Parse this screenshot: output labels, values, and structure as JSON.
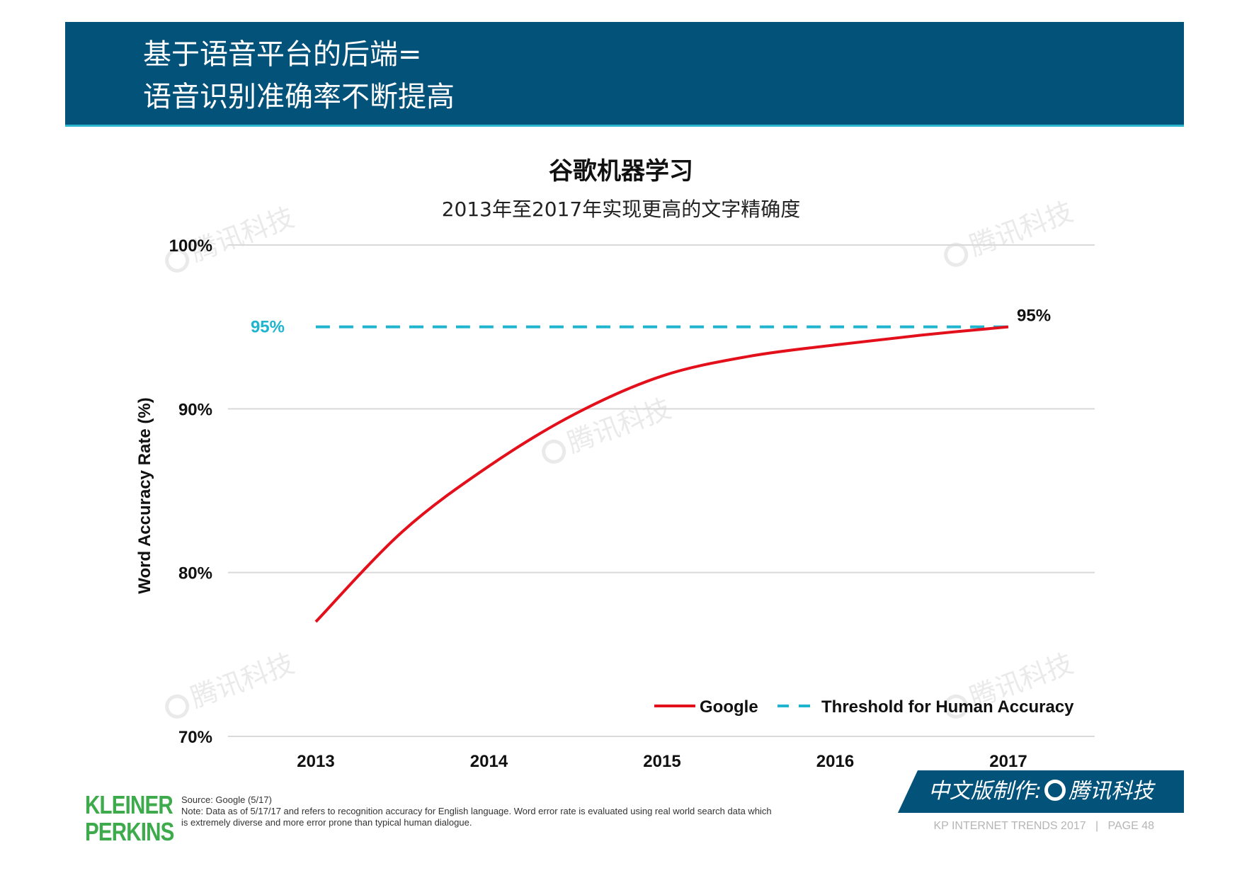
{
  "header": {
    "line1": "基于语音平台的后端=",
    "line2": "语音识别准确率不断提高"
  },
  "chart_data": {
    "type": "line",
    "title": "谷歌机器学习",
    "subtitle": "2013年至2017年实现更高的文字精确度",
    "ylabel": "Word Accuracy Rate (%)",
    "xlabel": "",
    "x": [
      2013,
      2014,
      2015,
      2016,
      2017
    ],
    "x_tick_labels": [
      "2013",
      "2014",
      "2015",
      "2016",
      "2017"
    ],
    "ylim": [
      70,
      100
    ],
    "y_ticks": [
      70,
      80,
      90,
      100
    ],
    "y_tick_labels": [
      "70%",
      "80%",
      "90%",
      "100%"
    ],
    "grid": true,
    "legend_position": "bottom-right",
    "series": [
      {
        "name": "Google",
        "color": "#e3101c",
        "style": "solid",
        "x": [
          2013,
          2013.5,
          2014,
          2014.5,
          2015,
          2015.5,
          2016,
          2016.5,
          2017
        ],
        "values": [
          77,
          82.5,
          86.5,
          89.7,
          92,
          93.2,
          93.9,
          94.5,
          95
        ]
      },
      {
        "name": "Threshold for Human Accuracy",
        "color": "#1fb5cf",
        "style": "dashed",
        "x": [
          2013,
          2017
        ],
        "values": [
          95,
          95
        ]
      }
    ],
    "annotations": [
      {
        "text": "95%",
        "x": 2013,
        "y": 95,
        "series": "Threshold for Human Accuracy",
        "color": "#1fb5cf"
      },
      {
        "text": "95%",
        "x": 2017,
        "y": 95,
        "series": "Google",
        "color": "#111111"
      }
    ]
  },
  "watermark": {
    "text": "腾讯科技"
  },
  "footer": {
    "logo_line1": "KLEINER",
    "logo_line2": "PERKINS",
    "source": "Source: Google (5/17)",
    "note_line1": "Note: Data as of 5/17/17 and refers to recognition accuracy for English language. Word error rate is evaluated using real world search data which",
    "note_line2": "is extremely diverse and more error prone than typical human dialogue.",
    "badge_prefix": "中文版制作:",
    "badge_brand": "腾讯科技",
    "trends": "KP INTERNET TRENDS 2017",
    "separator": "|",
    "page": "PAGE 48"
  }
}
